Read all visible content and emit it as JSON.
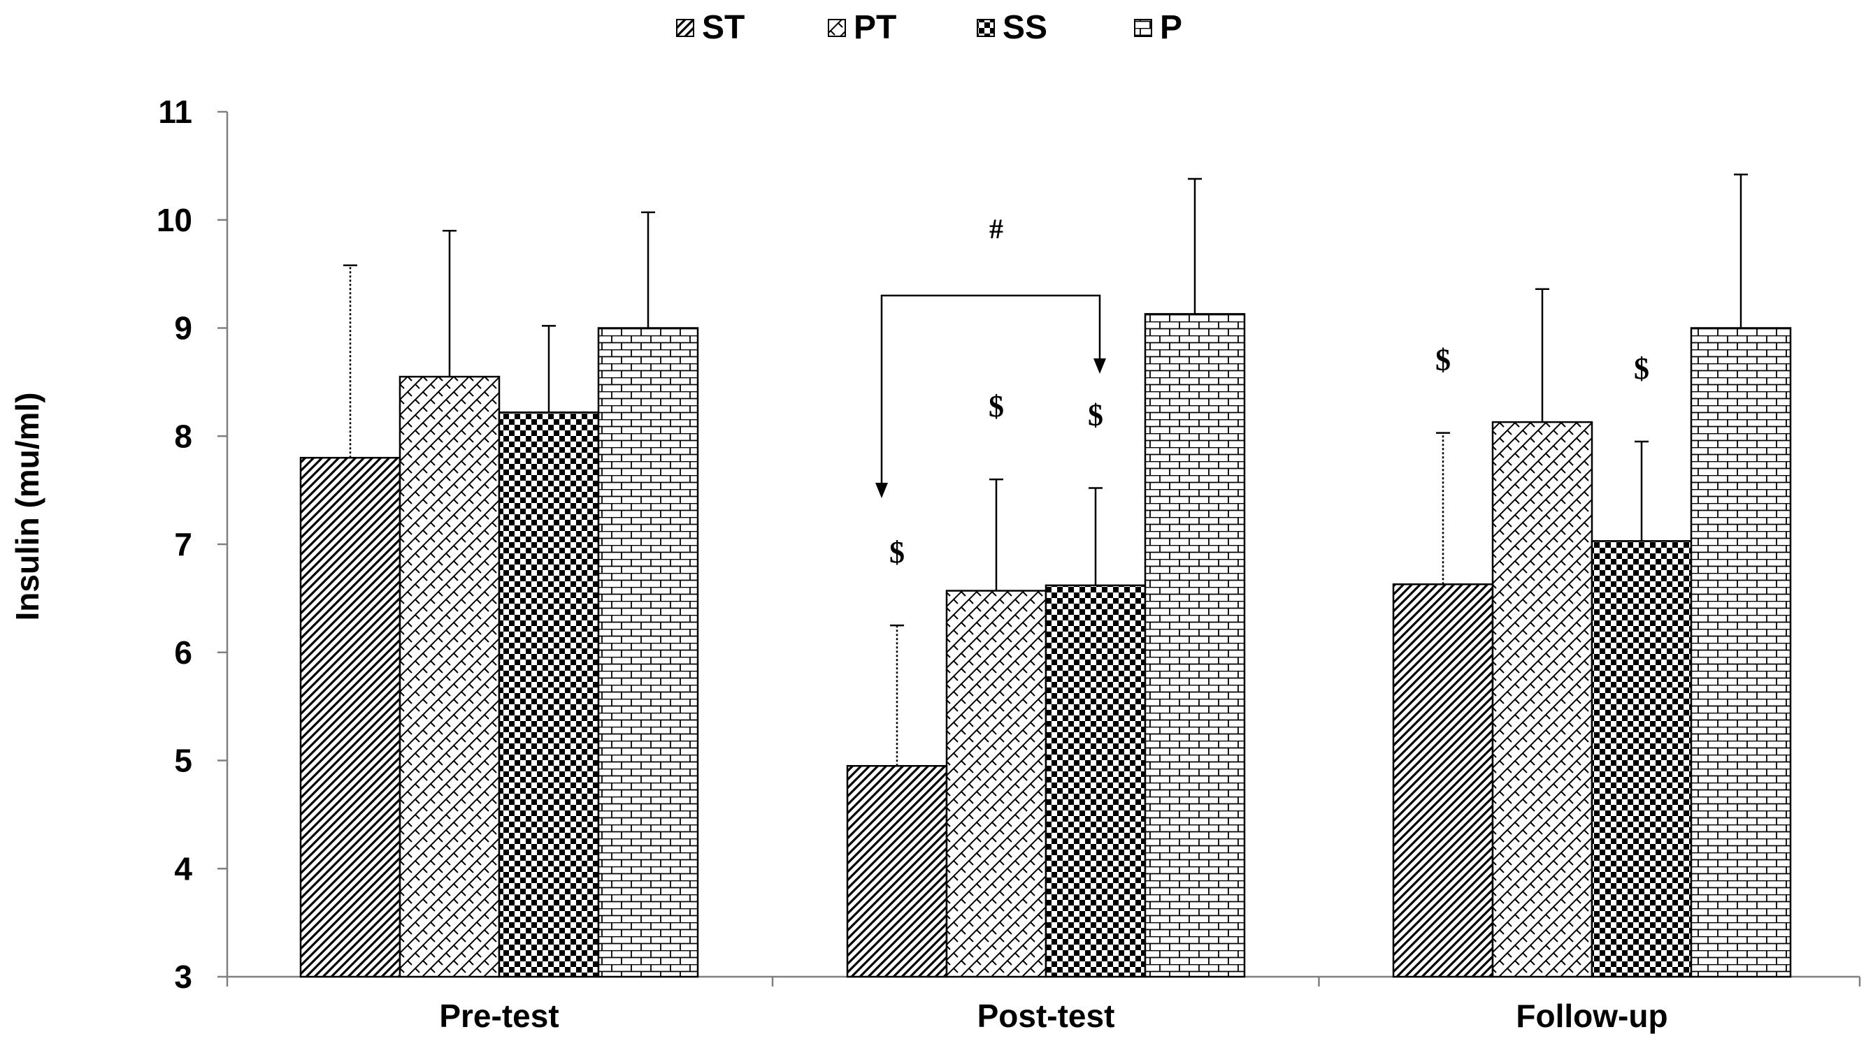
{
  "chart_data": {
    "type": "bar",
    "title": "",
    "xlabel": "",
    "ylabel": "Insulin (mu/ml)",
    "ylim": [
      3,
      11
    ],
    "yticks": [
      3,
      4,
      5,
      6,
      7,
      8,
      9,
      10,
      11
    ],
    "categories": [
      "Pre-test",
      "Post-test",
      "Follow-up"
    ],
    "legend_position": "top-center",
    "grid": false,
    "series": [
      {
        "name": "ST",
        "pattern": "diagonal-lines",
        "values": [
          7.8,
          4.95,
          6.63
        ],
        "errors": [
          1.78,
          1.3,
          1.4
        ]
      },
      {
        "name": "PT",
        "pattern": "zigzag",
        "values": [
          8.55,
          6.57,
          8.13
        ],
        "errors": [
          1.35,
          1.03,
          1.23
        ]
      },
      {
        "name": "SS",
        "pattern": "checker",
        "values": [
          8.22,
          6.62,
          7.03
        ],
        "errors": [
          0.8,
          0.9,
          0.92
        ]
      },
      {
        "name": "P",
        "pattern": "brick",
        "values": [
          9.0,
          9.13,
          9.0
        ],
        "errors": [
          1.07,
          1.25,
          1.42
        ]
      }
    ],
    "annotations": [
      {
        "text": "$",
        "series": 0,
        "category": 1
      },
      {
        "text": "$",
        "series": 1,
        "category": 1
      },
      {
        "text": "$",
        "series": 2,
        "category": 1
      },
      {
        "text": "$",
        "series": 0,
        "category": 2
      },
      {
        "text": "$",
        "series": 2,
        "category": 2
      }
    ],
    "bracket": {
      "text": "#",
      "category": 1,
      "from_series": 0,
      "to_series": 2
    }
  },
  "colors": {
    "ink": "#000000",
    "background": "#ffffff",
    "axis": "#808080"
  }
}
